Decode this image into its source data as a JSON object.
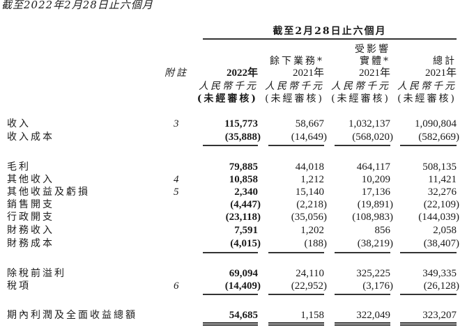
{
  "title": "截至2022年2月28日止六個月",
  "header": {
    "period": "截至2月28日止六個月",
    "note_label": "附註",
    "columns": [
      {
        "group": "",
        "year": "2022年",
        "unit": "人民幣千元",
        "audit": "(未經審核)",
        "bold": true
      },
      {
        "group": "餘下業務*",
        "year": "2021年",
        "unit": "人民幣千元",
        "audit": "(未經審核)",
        "bold": false
      },
      {
        "group_line1": "受影響",
        "group": "實體*",
        "year": "2021年",
        "unit": "人民幣千元",
        "audit": "(未經審核)",
        "bold": false
      },
      {
        "group": "總計",
        "year": "2021年",
        "unit": "人民幣千元",
        "audit": "(未經審核)",
        "bold": false
      }
    ]
  },
  "rows": [
    {
      "label": "收入",
      "note": "3",
      "values": [
        "115,773",
        "58,667",
        "1,032,137",
        "1,090,804"
      ]
    },
    {
      "label": "收入成本",
      "note": "",
      "values": [
        "(35,888)",
        "(14,649)",
        "(568,020)",
        "(582,669)"
      ]
    },
    {
      "label": "毛利",
      "note": "",
      "values": [
        "79,885",
        "44,018",
        "464,117",
        "508,135"
      ]
    },
    {
      "label": "其他收入",
      "note": "4",
      "values": [
        "10,858",
        "1,212",
        "10,209",
        "11,421"
      ]
    },
    {
      "label": "其他收益及虧損",
      "note": "5",
      "values": [
        "2,340",
        "15,140",
        "17,136",
        "32,276"
      ]
    },
    {
      "label": "銷售開支",
      "note": "",
      "values": [
        "(4,447)",
        "(2,218)",
        "(19,891)",
        "(22,109)"
      ]
    },
    {
      "label": "行政開支",
      "note": "",
      "values": [
        "(23,118)",
        "(35,056)",
        "(108,983)",
        "(144,039)"
      ]
    },
    {
      "label": "財務收入",
      "note": "",
      "values": [
        "7,591",
        "1,202",
        "856",
        "2,058"
      ]
    },
    {
      "label": "財務成本",
      "note": "",
      "values": [
        "(4,015)",
        "(188)",
        "(38,219)",
        "(38,407)"
      ]
    },
    {
      "label": "除稅前溢利",
      "note": "",
      "values": [
        "69,094",
        "24,110",
        "325,225",
        "349,335"
      ]
    },
    {
      "label": "稅項",
      "note": "6",
      "values": [
        "(14,409)",
        "(22,952)",
        "(3,176)",
        "(26,128)"
      ]
    },
    {
      "label": "期內利潤及全面收益總額",
      "note": "",
      "values": [
        "54,685",
        "1,158",
        "322,049",
        "323,207"
      ]
    }
  ]
}
